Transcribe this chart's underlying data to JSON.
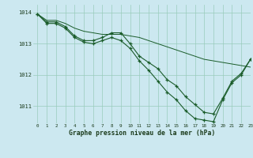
{
  "background_color": "#cce8f0",
  "grid_color": "#99ccbb",
  "line_color": "#1a5c2a",
  "title": "Graphe pression niveau de la mer (hPa)",
  "xlim": [
    -0.5,
    23
  ],
  "ylim": [
    1010.45,
    1014.25
  ],
  "yticks": [
    1011,
    1012,
    1013,
    1014
  ],
  "xticks": [
    0,
    1,
    2,
    3,
    4,
    5,
    6,
    7,
    8,
    9,
    10,
    11,
    12,
    13,
    14,
    15,
    16,
    17,
    18,
    19,
    20,
    21,
    22,
    23
  ],
  "series": [
    {
      "x": [
        0,
        1,
        2,
        3,
        4,
        5,
        6,
        7,
        8,
        9,
        10,
        11,
        12,
        13,
        14,
        15,
        16,
        17,
        18,
        19,
        20,
        21,
        22,
        23
      ],
      "y": [
        1013.95,
        1013.75,
        1013.75,
        1013.65,
        1013.5,
        1013.4,
        1013.35,
        1013.3,
        1013.3,
        1013.3,
        1013.25,
        1013.2,
        1013.1,
        1013.0,
        1012.9,
        1012.8,
        1012.7,
        1012.6,
        1012.5,
        1012.45,
        1012.4,
        1012.35,
        1012.3,
        1012.25
      ]
    },
    {
      "x": [
        0,
        1,
        2,
        3,
        4,
        5,
        6,
        7,
        8,
        9,
        10,
        11,
        12,
        13,
        14,
        15,
        16,
        17,
        18,
        19,
        20,
        21,
        22,
        23
      ],
      "y": [
        1013.95,
        1013.7,
        1013.7,
        1013.55,
        1013.25,
        1013.1,
        1013.1,
        1013.2,
        1013.35,
        1013.35,
        1013.0,
        1012.6,
        1012.4,
        1012.2,
        1011.85,
        1011.65,
        1011.3,
        1011.05,
        1010.8,
        1010.75,
        1011.25,
        1011.8,
        1012.05,
        1012.5
      ]
    },
    {
      "x": [
        0,
        1,
        2,
        3,
        4,
        5,
        6,
        7,
        8,
        9,
        10,
        11,
        12,
        13,
        14,
        15,
        16,
        17,
        18,
        19,
        20,
        21,
        22,
        23
      ],
      "y": [
        1013.95,
        1013.65,
        1013.65,
        1013.5,
        1013.2,
        1013.05,
        1013.0,
        1013.1,
        1013.2,
        1013.1,
        1012.85,
        1012.45,
        1012.15,
        1011.8,
        1011.45,
        1011.2,
        1010.85,
        1010.6,
        1010.55,
        1010.5,
        1011.2,
        1011.75,
        1012.0,
        1012.5
      ]
    }
  ]
}
